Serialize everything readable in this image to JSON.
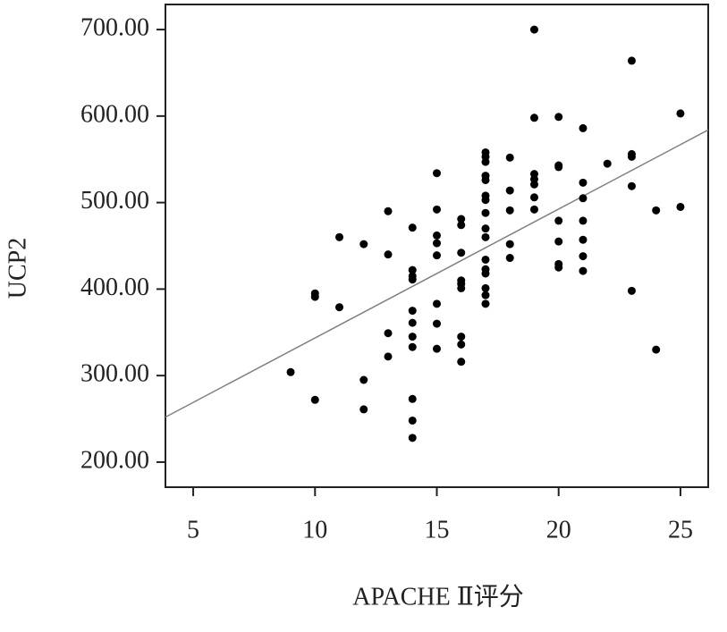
{
  "chart_data": {
    "type": "scatter",
    "x_label": "APACHE Ⅱ评分",
    "y_label": "UCP2",
    "series": [
      {
        "color": "#000000",
        "x": [
          9,
          10,
          10,
          10,
          11,
          11,
          12,
          12,
          12,
          13,
          13,
          13,
          13,
          14,
          14,
          14,
          14,
          14,
          14,
          14,
          14,
          14,
          14,
          14,
          15,
          15,
          15,
          15,
          15,
          15,
          15,
          15,
          16,
          16,
          16,
          16,
          16,
          16,
          16,
          16,
          16,
          17,
          17,
          17,
          17,
          17,
          17,
          17,
          17,
          17,
          17,
          17,
          17,
          17,
          17,
          17,
          17,
          18,
          18,
          18,
          18,
          18,
          19,
          19,
          19,
          19,
          19,
          19,
          19,
          20,
          20,
          20,
          20,
          20,
          20,
          20,
          21,
          21,
          21,
          21,
          21,
          21,
          21,
          22,
          23,
          23,
          23,
          23,
          23,
          24,
          24,
          25,
          25
        ],
        "values": [
          304,
          395,
          391,
          272,
          460,
          379,
          452,
          295,
          261,
          490,
          440,
          349,
          322,
          471,
          422,
          415,
          411,
          375,
          361,
          345,
          333,
          273,
          248,
          228,
          534,
          492,
          462,
          453,
          439,
          383,
          360,
          331,
          481,
          474,
          442,
          410,
          406,
          401,
          345,
          336,
          316,
          558,
          553,
          547,
          531,
          526,
          508,
          503,
          488,
          470,
          460,
          434,
          423,
          418,
          401,
          393,
          383,
          552,
          514,
          491,
          452,
          436,
          700,
          598,
          533,
          527,
          521,
          506,
          492,
          599,
          543,
          541,
          479,
          455,
          429,
          425,
          586,
          523,
          505,
          479,
          457,
          438,
          421,
          545,
          664,
          556,
          553,
          519,
          398,
          491,
          330,
          603,
          495
        ]
      }
    ],
    "fit_line": {
      "color": "#808080",
      "x": [
        3.86,
        26.14
      ],
      "values": [
        252,
        584
      ]
    },
    "xlim": [
      3.86,
      26.14
    ],
    "xticks": [
      5,
      10,
      15,
      20,
      25
    ],
    "ylim": [
      171,
      729
    ],
    "yticks": [
      {
        "value": 200,
        "label": "200.00"
      },
      {
        "value": 300,
        "label": "300.00"
      },
      {
        "value": 400,
        "label": "400.00"
      },
      {
        "value": 500,
        "label": "500.00"
      },
      {
        "value": 600,
        "label": "600.00"
      },
      {
        "value": 700,
        "label": "700.00"
      }
    ]
  }
}
